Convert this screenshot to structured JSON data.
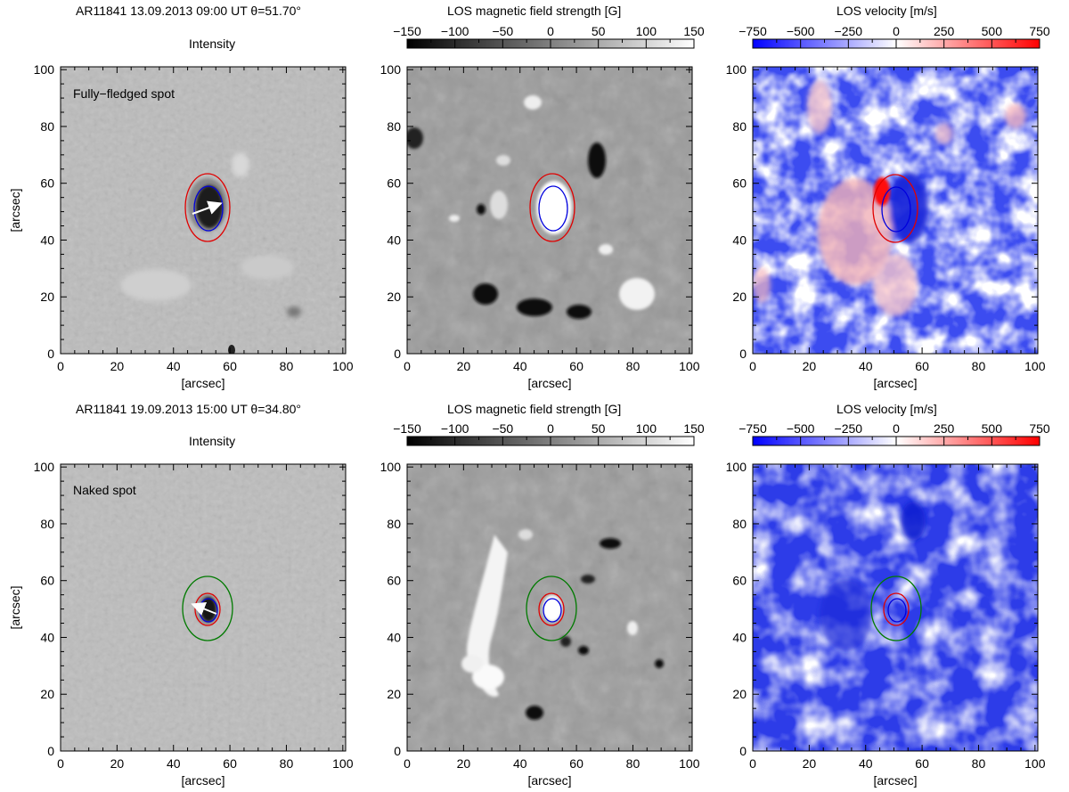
{
  "figure": {
    "rows": [
      {
        "header": "AR11841  13.09.2013 09:00 UT  θ=51.70°",
        "intensity_title": "Intensity",
        "spot_label": "Fully−fledged spot",
        "spot_type": "fully-fledged",
        "contours": [
          "red",
          "blue"
        ],
        "magnetic_colorbar": {
          "title": "LOS magnetic field strength [G]",
          "ticks": [
            "−150",
            "−100",
            "−50",
            "0",
            "50",
            "100",
            "150"
          ],
          "range": [
            -150,
            150
          ],
          "colormap": "grayscale"
        },
        "velocity_colorbar": {
          "title": "LOS velocity [m/s]",
          "ticks": [
            "−750",
            "−500",
            "−250",
            "0",
            "250",
            "500",
            "750"
          ],
          "range": [
            -750,
            750
          ],
          "colormap": "blue-white-red",
          "colors": {
            "negative": "#0000ff",
            "zero": "#ffffff",
            "positive": "#ff0000"
          }
        }
      },
      {
        "header": "AR11841  19.09.2013 15:00 UT  θ=34.80°",
        "intensity_title": "Intensity",
        "spot_label": "Naked spot",
        "spot_type": "naked",
        "contours": [
          "green",
          "red",
          "blue"
        ],
        "magnetic_colorbar": {
          "title": "LOS magnetic field strength [G]",
          "ticks": [
            "−150",
            "−100",
            "−50",
            "0",
            "50",
            "100",
            "150"
          ],
          "range": [
            -150,
            150
          ],
          "colormap": "grayscale"
        },
        "velocity_colorbar": {
          "title": "LOS velocity [m/s]",
          "ticks": [
            "−750",
            "−500",
            "−250",
            "0",
            "250",
            "500",
            "750"
          ],
          "range": [
            -750,
            750
          ],
          "colormap": "blue-white-red",
          "colors": {
            "negative": "#0000ff",
            "zero": "#ffffff",
            "positive": "#ff0000"
          }
        }
      }
    ],
    "axes": {
      "xlabel": "[arcsec]",
      "ylabel": "[arcsec]",
      "ticks": [
        "0",
        "20",
        "40",
        "60",
        "80",
        "100"
      ],
      "range": [
        0,
        101
      ]
    },
    "contour_colors": {
      "red": "#e00000",
      "blue": "#0000dd",
      "green": "#007a00"
    }
  }
}
